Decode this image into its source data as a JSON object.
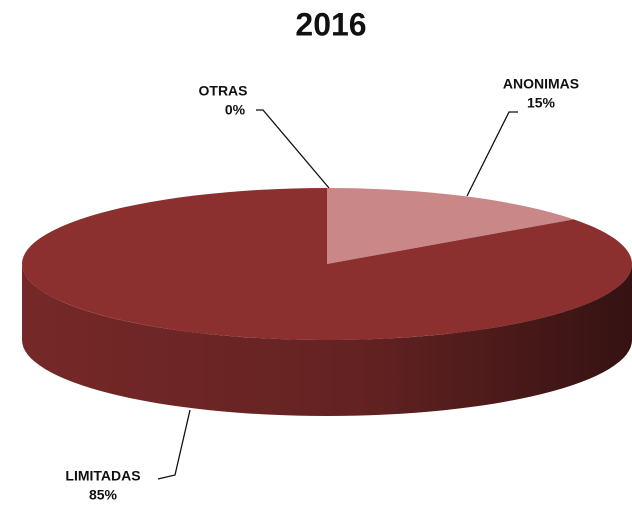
{
  "chart_data": {
    "type": "pie",
    "title": "2016",
    "categories": [
      "OTRAS",
      "ANONIMAS",
      "LIMITADAS"
    ],
    "values": [
      0,
      15,
      85
    ],
    "value_labels": [
      "0%",
      "15%",
      "85%"
    ],
    "colors": [
      "#a04040",
      "#c98787",
      "#8b2f2f"
    ],
    "legend": false
  }
}
